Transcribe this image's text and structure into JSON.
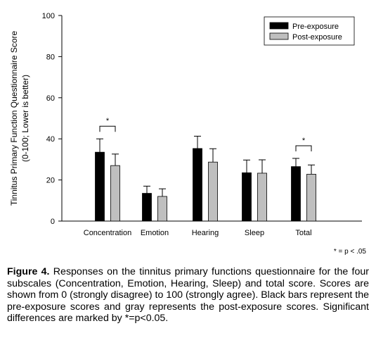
{
  "chart_data": {
    "type": "bar",
    "categories": [
      "Concentration",
      "Emotion",
      "Hearing",
      "Sleep",
      "Total"
    ],
    "series": [
      {
        "name": "Pre-exposure",
        "values": [
          33.5,
          13.5,
          35.3,
          23.5,
          26.5
        ],
        "errors": [
          6.5,
          3.5,
          6.0,
          6.2,
          4.0
        ],
        "color": "#000000"
      },
      {
        "name": "Post-exposure",
        "values": [
          27.0,
          12.0,
          28.7,
          23.3,
          22.8
        ],
        "errors": [
          5.6,
          3.7,
          6.5,
          6.5,
          4.5
        ],
        "color": "#bfbfbf"
      }
    ],
    "ylabel_line1": "Tinnitus Primary Function Questionnaire Score",
    "ylabel_line2": "(0-100; Lower is better)",
    "ylim": [
      0,
      100
    ],
    "yticks": [
      0,
      20,
      40,
      60,
      80,
      100
    ],
    "legend_position": "top-right",
    "grid": false,
    "significance_marks": [
      {
        "category": "Concentration",
        "label": "*"
      },
      {
        "category": "Total",
        "label": "*"
      }
    ]
  },
  "footnote": "* = p < .05",
  "caption": {
    "label": "Figure 4.",
    "text": " Responses on the tinnitus primary functions questionnaire for the four subscales (Concentration, Emotion, Hearing, Sleep) and total score. Scores are shown from 0 (strongly disagree) to 100 (strongly agree). Black bars represent the pre-exposure scores and gray represents the post-exposure scores. Significant differences are marked by *=p<0.05."
  }
}
